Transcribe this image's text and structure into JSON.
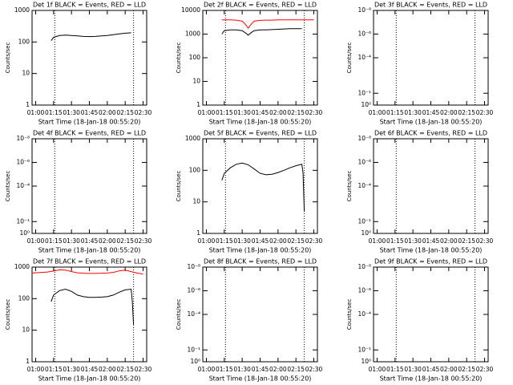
{
  "chart_data": [
    {
      "type": "line",
      "title": "Det 1f BLACK = Events, RED = LLD",
      "xlabel": "Start Time (18-Jan-18 00:55:20)",
      "ylabel": "Counts/sec",
      "log_y": true,
      "xlim": [
        57,
        153
      ],
      "xticks": [
        {
          "value": 60,
          "label": "01:00"
        },
        {
          "value": 75,
          "label": "01:15"
        },
        {
          "value": 90,
          "label": "01:30"
        },
        {
          "value": 105,
          "label": "01:45"
        },
        {
          "value": 120,
          "label": "02:00"
        },
        {
          "value": 135,
          "label": "02:15"
        },
        {
          "value": 150,
          "label": "02:30"
        }
      ],
      "ylim": [
        1,
        1000
      ],
      "yticks": [
        1,
        10,
        100,
        1000
      ],
      "vlines": [
        76,
        142
      ],
      "series": [
        {
          "name": "Events",
          "color": "#000000",
          "x": [
            73,
            75,
            80,
            85,
            90,
            95,
            100,
            105,
            110,
            115,
            120,
            125,
            130,
            135,
            140
          ],
          "values": [
            110,
            140,
            160,
            165,
            160,
            155,
            150,
            148,
            150,
            155,
            160,
            170,
            180,
            190,
            195
          ]
        }
      ]
    },
    {
      "type": "line",
      "title": "Det 2f BLACK = Events, RED = LLD",
      "xlabel": "Start Time (18-Jan-18 00:55:20)",
      "ylabel": "Counts/sec",
      "log_y": true,
      "xlim": [
        57,
        153
      ],
      "xticks": [
        {
          "value": 60,
          "label": "01:00"
        },
        {
          "value": 75,
          "label": "01:15"
        },
        {
          "value": 90,
          "label": "01:30"
        },
        {
          "value": 105,
          "label": "01:45"
        },
        {
          "value": 120,
          "label": "02:00"
        },
        {
          "value": 135,
          "label": "02:15"
        },
        {
          "value": 150,
          "label": "02:30"
        }
      ],
      "ylim": [
        1,
        10000
      ],
      "yticks": [
        1,
        10,
        100,
        1000,
        10000
      ],
      "vlines": [
        76,
        142
      ],
      "series": [
        {
          "name": "Events",
          "color": "#000000",
          "x": [
            73,
            75,
            80,
            85,
            90,
            93,
            95,
            98,
            100,
            105,
            110,
            115,
            120,
            125,
            130,
            135,
            140
          ],
          "values": [
            1000,
            1400,
            1500,
            1500,
            1400,
            1100,
            900,
            1200,
            1400,
            1500,
            1500,
            1550,
            1600,
            1650,
            1700,
            1700,
            1700
          ]
        },
        {
          "name": "LLD",
          "color": "#ff0000",
          "x": [
            73,
            75,
            80,
            85,
            90,
            93,
            95,
            98,
            100,
            105,
            110,
            115,
            120,
            125,
            130,
            135,
            140,
            145,
            150
          ],
          "values": [
            4000,
            4000,
            4000,
            3900,
            3500,
            2500,
            1800,
            2800,
            3500,
            3800,
            3900,
            3900,
            4000,
            4000,
            4000,
            4000,
            4000,
            4000,
            4000
          ]
        }
      ]
    },
    {
      "type": "line",
      "title": "Det 3f BLACK = Events, RED = LLD",
      "xlabel": "Start Time (18-Jan-18 00:55:20)",
      "ylabel": "Counts/sec",
      "log_y": true,
      "xlim": [
        57,
        153
      ],
      "xticks": [
        {
          "value": 60,
          "label": "01:00"
        },
        {
          "value": 75,
          "label": "01:15"
        },
        {
          "value": 90,
          "label": "01:30"
        },
        {
          "value": 105,
          "label": "01:45"
        },
        {
          "value": 120,
          "label": "02:00"
        },
        {
          "value": 135,
          "label": "02:15"
        },
        {
          "value": 150,
          "label": "02:30"
        }
      ],
      "ylim": [
        1,
        1e-08
      ],
      "yticks": [
        {
          "value": 1,
          "label": "10⁰"
        },
        {
          "value": 0.1,
          "label": "10⁻¹"
        },
        {
          "value": 0.0001,
          "label": "10⁻⁴"
        },
        {
          "value": 1e-06,
          "label": "10⁻⁶"
        },
        {
          "value": 1e-08,
          "label": "10⁻⁸"
        }
      ],
      "vlines": [
        76,
        142
      ],
      "series": []
    },
    {
      "type": "line",
      "title": "Det 4f BLACK = Events, RED = LLD",
      "xlabel": "Start Time (18-Jan-18 00:55:20)",
      "ylabel": "Counts/sec",
      "log_y": true,
      "xlim": [
        57,
        153
      ],
      "xticks": [
        {
          "value": 60,
          "label": "01:00"
        },
        {
          "value": 75,
          "label": "01:15"
        },
        {
          "value": 90,
          "label": "01:30"
        },
        {
          "value": 105,
          "label": "01:45"
        },
        {
          "value": 120,
          "label": "02:00"
        },
        {
          "value": 135,
          "label": "02:15"
        },
        {
          "value": 150,
          "label": "02:30"
        }
      ],
      "ylim": [
        1,
        1e-08
      ],
      "yticks": [
        {
          "value": 1,
          "label": "10⁰"
        },
        {
          "value": 0.1,
          "label": "10⁻¹"
        },
        {
          "value": 0.0001,
          "label": "10⁻⁴"
        },
        {
          "value": 1e-06,
          "label": "10⁻⁶"
        },
        {
          "value": 1e-08,
          "label": "10⁻⁸"
        }
      ],
      "vlines": [
        76,
        142
      ],
      "series": []
    },
    {
      "type": "line",
      "title": "Det 5f BLACK = Events, RED = LLD",
      "xlabel": "Start Time (18-Jan-18 00:55:20)",
      "ylabel": "Counts/sec",
      "log_y": true,
      "xlim": [
        57,
        153
      ],
      "xticks": [
        {
          "value": 60,
          "label": "01:00"
        },
        {
          "value": 75,
          "label": "01:15"
        },
        {
          "value": 90,
          "label": "01:30"
        },
        {
          "value": 105,
          "label": "01:45"
        },
        {
          "value": 120,
          "label": "02:00"
        },
        {
          "value": 135,
          "label": "02:15"
        },
        {
          "value": 150,
          "label": "02:30"
        }
      ],
      "ylim": [
        1,
        1000
      ],
      "yticks": [
        1,
        10,
        100,
        1000
      ],
      "vlines": [
        76,
        142
      ],
      "series": [
        {
          "name": "Events",
          "color": "#000000",
          "x": [
            73,
            75,
            80,
            85,
            90,
            95,
            100,
            105,
            110,
            115,
            120,
            125,
            130,
            135,
            140,
            141,
            142
          ],
          "values": [
            48,
            80,
            120,
            155,
            170,
            150,
            110,
            80,
            72,
            75,
            85,
            100,
            120,
            140,
            155,
            80,
            5
          ]
        }
      ]
    },
    {
      "type": "line",
      "title": "Det 6f BLACK = Events, RED = LLD",
      "xlabel": "Start Time (18-Jan-18 00:55:20)",
      "ylabel": "Counts/sec",
      "log_y": true,
      "xlim": [
        57,
        153
      ],
      "xticks": [
        {
          "value": 60,
          "label": "01:00"
        },
        {
          "value": 75,
          "label": "01:15"
        },
        {
          "value": 90,
          "label": "01:30"
        },
        {
          "value": 105,
          "label": "01:45"
        },
        {
          "value": 120,
          "label": "02:00"
        },
        {
          "value": 135,
          "label": "02:15"
        },
        {
          "value": 150,
          "label": "02:30"
        }
      ],
      "ylim": [
        1,
        1e-08
      ],
      "yticks": [
        {
          "value": 1,
          "label": "10⁰"
        },
        {
          "value": 0.1,
          "label": "10⁻¹"
        },
        {
          "value": 0.0001,
          "label": "10⁻⁴"
        },
        {
          "value": 1e-06,
          "label": "10⁻⁶"
        },
        {
          "value": 1e-08,
          "label": "10⁻⁸"
        }
      ],
      "vlines": [
        76,
        142
      ],
      "series": []
    },
    {
      "type": "line",
      "title": "Det 7f BLACK = Events, RED = LLD",
      "xlabel": "Start Time (18-Jan-18 00:55:20)",
      "ylabel": "Counts/sec",
      "log_y": true,
      "xlim": [
        57,
        153
      ],
      "xticks": [
        {
          "value": 60,
          "label": "01:00"
        },
        {
          "value": 75,
          "label": "01:15"
        },
        {
          "value": 90,
          "label": "01:30"
        },
        {
          "value": 105,
          "label": "01:45"
        },
        {
          "value": 120,
          "label": "02:00"
        },
        {
          "value": 135,
          "label": "02:15"
        },
        {
          "value": 150,
          "label": "02:30"
        }
      ],
      "ylim": [
        1,
        1000
      ],
      "yticks": [
        1,
        10,
        100,
        1000
      ],
      "vlines": [
        76,
        142
      ],
      "series": [
        {
          "name": "Events",
          "color": "#000000",
          "x": [
            73,
            75,
            80,
            85,
            90,
            95,
            100,
            105,
            110,
            115,
            120,
            125,
            130,
            135,
            140,
            141,
            142
          ],
          "values": [
            80,
            130,
            180,
            200,
            170,
            130,
            115,
            110,
            110,
            112,
            115,
            130,
            160,
            190,
            200,
            80,
            15
          ]
        },
        {
          "name": "LLD",
          "color": "#ff0000",
          "x": [
            57,
            65,
            70,
            75,
            80,
            85,
            90,
            95,
            100,
            105,
            110,
            115,
            120,
            125,
            130,
            135,
            140,
            145,
            150
          ],
          "values": [
            650,
            680,
            700,
            750,
            820,
            800,
            720,
            660,
            640,
            630,
            630,
            640,
            650,
            680,
            760,
            800,
            720,
            650,
            600
          ]
        }
      ]
    },
    {
      "type": "line",
      "title": "Det 8f BLACK = Events, RED = LLD",
      "xlabel": "Start Time (18-Jan-18 00:55:20)",
      "ylabel": "Counts/sec",
      "log_y": true,
      "xlim": [
        57,
        153
      ],
      "xticks": [
        {
          "value": 60,
          "label": "01:00"
        },
        {
          "value": 75,
          "label": "01:15"
        },
        {
          "value": 90,
          "label": "01:30"
        },
        {
          "value": 105,
          "label": "01:45"
        },
        {
          "value": 120,
          "label": "02:00"
        },
        {
          "value": 135,
          "label": "02:15"
        },
        {
          "value": 150,
          "label": "02:30"
        }
      ],
      "ylim": [
        1,
        1e-08
      ],
      "yticks": [
        {
          "value": 1,
          "label": "10⁰"
        },
        {
          "value": 0.1,
          "label": "10⁻¹"
        },
        {
          "value": 0.0001,
          "label": "10⁻⁴"
        },
        {
          "value": 1e-06,
          "label": "10⁻⁶"
        },
        {
          "value": 1e-08,
          "label": "10⁻⁸"
        }
      ],
      "vlines": [
        76,
        142
      ],
      "series": []
    },
    {
      "type": "line",
      "title": "Det 9f BLACK = Events, RED = LLD",
      "xlabel": "Start Time (18-Jan-18 00:55:20)",
      "ylabel": "Counts/sec",
      "log_y": true,
      "xlim": [
        57,
        153
      ],
      "xticks": [
        {
          "value": 60,
          "label": "01:00"
        },
        {
          "value": 75,
          "label": "01:15"
        },
        {
          "value": 90,
          "label": "01:30"
        },
        {
          "value": 105,
          "label": "01:45"
        },
        {
          "value": 120,
          "label": "02:00"
        },
        {
          "value": 135,
          "label": "02:15"
        },
        {
          "value": 150,
          "label": "02:30"
        }
      ],
      "ylim": [
        1,
        1e-08
      ],
      "yticks": [
        {
          "value": 1,
          "label": "10⁰"
        },
        {
          "value": 0.1,
          "label": "10⁻¹"
        },
        {
          "value": 0.0001,
          "label": "10⁻⁴"
        },
        {
          "value": 1e-06,
          "label": "10⁻⁶"
        },
        {
          "value": 1e-08,
          "label": "10⁻⁸"
        }
      ],
      "vlines": [
        76,
        142
      ],
      "series": []
    }
  ]
}
